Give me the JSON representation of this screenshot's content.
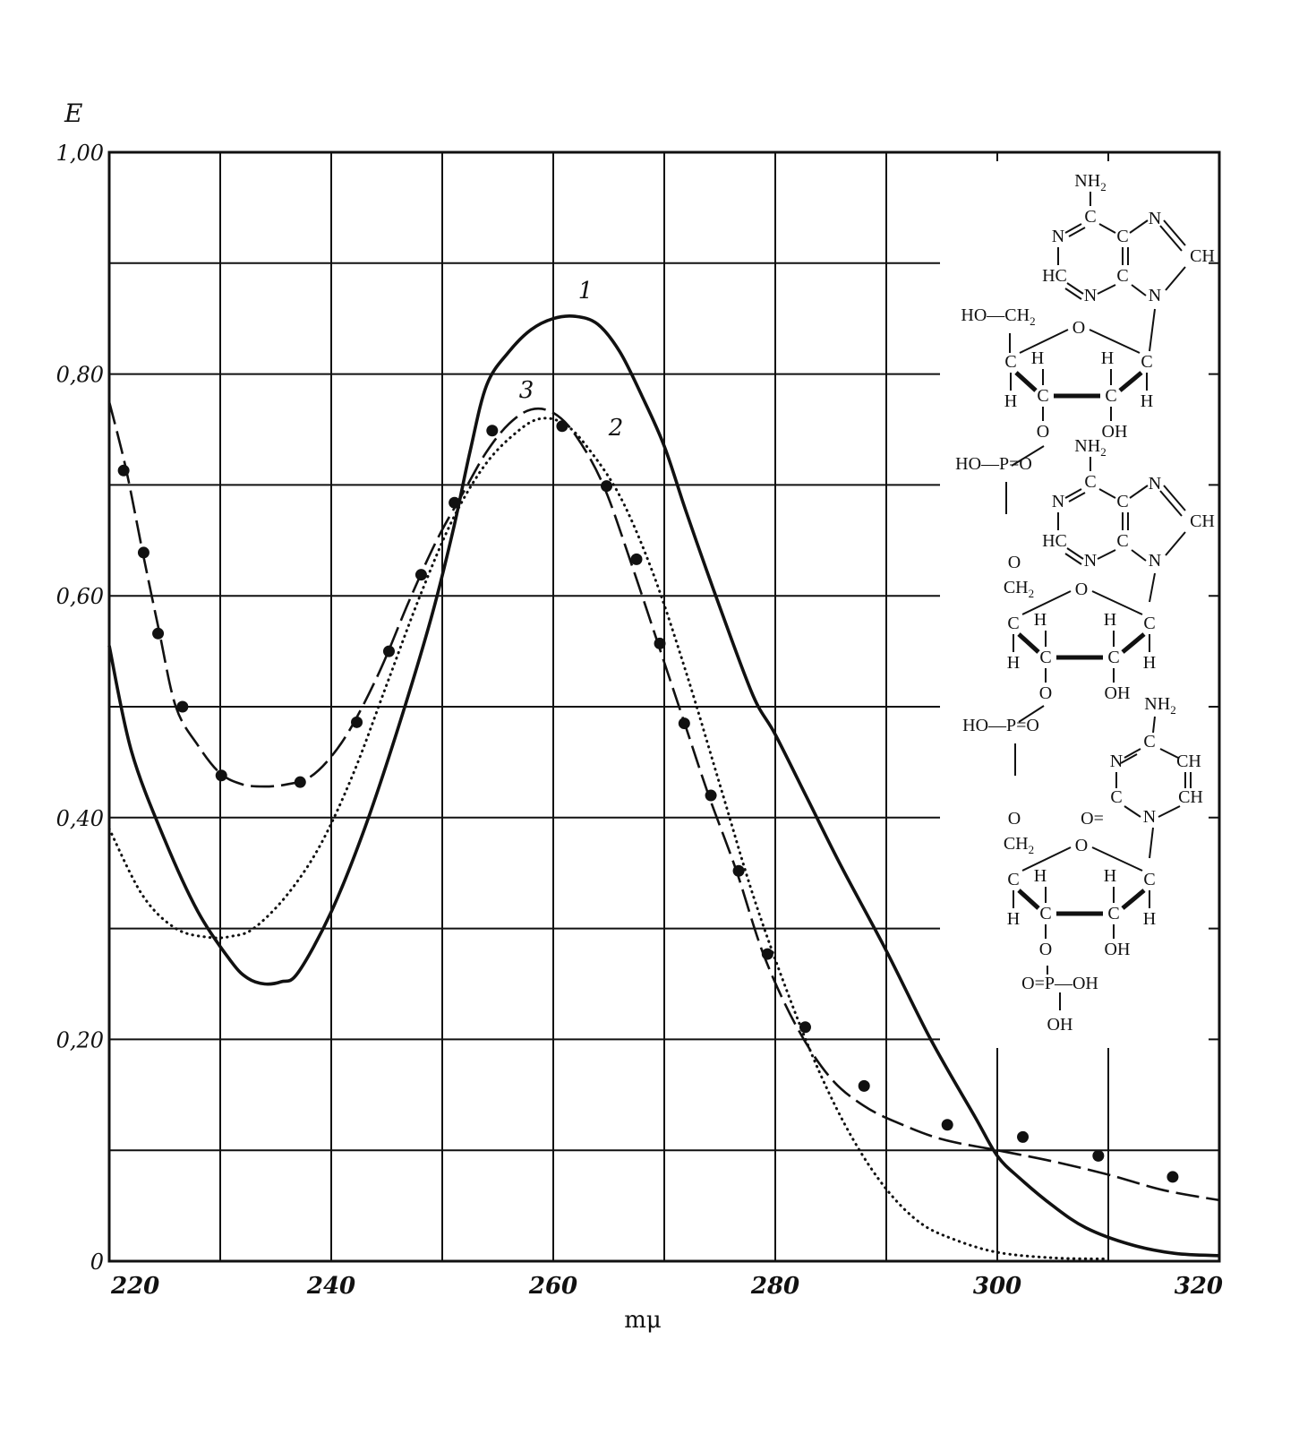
{
  "chart_data": {
    "type": "line",
    "title": "",
    "ylabel": "E",
    "xlabel": "mμ",
    "xlim": [
      220,
      320
    ],
    "ylim": [
      0,
      1.0
    ],
    "x_ticks": [
      220,
      240,
      260,
      280,
      300,
      320
    ],
    "x_tick_labels": [
      "220",
      "240",
      "260",
      "280",
      "300",
      "320"
    ],
    "y_ticks": [
      0,
      0.2,
      0.4,
      0.6,
      0.8,
      1.0
    ],
    "y_tick_labels": [
      "0",
      "0,20",
      "0,40",
      "0,60",
      "0,80",
      "1,00"
    ],
    "grid": true,
    "grid_x_step": 10,
    "grid_y_step": 0.1,
    "series": [
      {
        "name": "1",
        "style": "solid-thick",
        "x": [
          220,
          222,
          225,
          228,
          231,
          232.5,
          234,
          235.5,
          237,
          240,
          243,
          246,
          249,
          251,
          252.5,
          254,
          256,
          258,
          260,
          262,
          264,
          266,
          268,
          270,
          272,
          275,
          278,
          280,
          283,
          286,
          290,
          294,
          298,
          300,
          302,
          305,
          308,
          312,
          316,
          320
        ],
        "y": [
          0.555,
          0.46,
          0.38,
          0.315,
          0.27,
          0.255,
          0.25,
          0.252,
          0.26,
          0.315,
          0.39,
          0.48,
          0.58,
          0.66,
          0.73,
          0.79,
          0.82,
          0.84,
          0.85,
          0.852,
          0.845,
          0.82,
          0.78,
          0.735,
          0.675,
          0.59,
          0.51,
          0.475,
          0.415,
          0.355,
          0.28,
          0.2,
          0.13,
          0.095,
          0.075,
          0.05,
          0.03,
          0.015,
          0.007,
          0.005
        ]
      },
      {
        "name": "2",
        "style": "dotted",
        "x": [
          220,
          223,
          226,
          229,
          231,
          233,
          236,
          239,
          242,
          245,
          248,
          251,
          254,
          257,
          259,
          261,
          263,
          266,
          269,
          272,
          275,
          278,
          281,
          284,
          287,
          290,
          293,
          296,
          300,
          305,
          310
        ],
        "y": [
          0.39,
          0.33,
          0.3,
          0.292,
          0.293,
          0.3,
          0.33,
          0.375,
          0.44,
          0.52,
          0.6,
          0.67,
          0.72,
          0.75,
          0.76,
          0.755,
          0.735,
          0.69,
          0.62,
          0.53,
          0.43,
          0.33,
          0.245,
          0.17,
          0.11,
          0.065,
          0.035,
          0.02,
          0.008,
          0.003,
          0.002
        ]
      },
      {
        "name": "3",
        "style": "dash-with-dots",
        "x": [
          220,
          221.5,
          223,
          224.5,
          226,
          228,
          230,
          232,
          234,
          236,
          238,
          240,
          242,
          244.5,
          247,
          249.5,
          252,
          254,
          256,
          258,
          260,
          262,
          264.5,
          267,
          269.5,
          272,
          274,
          276.5,
          279,
          282,
          285,
          288,
          291,
          295,
          300,
          305,
          310,
          315,
          320
        ],
        "y": [
          0.775,
          0.715,
          0.64,
          0.568,
          0.5,
          0.465,
          0.44,
          0.43,
          0.428,
          0.43,
          0.436,
          0.455,
          0.485,
          0.535,
          0.595,
          0.65,
          0.695,
          0.73,
          0.755,
          0.768,
          0.765,
          0.745,
          0.7,
          0.63,
          0.555,
          0.48,
          0.42,
          0.352,
          0.275,
          0.21,
          0.165,
          0.14,
          0.125,
          0.11,
          0.1,
          0.09,
          0.078,
          0.064,
          0.055
        ]
      }
    ],
    "marker_points_series_3": {
      "x": [
        221.3,
        223.1,
        224.4,
        226.6,
        230.1,
        237.2,
        242.3,
        245.2,
        248.1,
        251.1,
        254.5,
        260.8,
        264.8,
        267.5,
        269.6,
        271.8,
        274.2,
        276.7,
        279.3,
        282.7,
        288.0,
        295.5,
        302.3,
        309.1,
        315.8
      ],
      "y": [
        0.713,
        0.639,
        0.566,
        0.5,
        0.438,
        0.432,
        0.486,
        0.55,
        0.619,
        0.684,
        0.749,
        0.753,
        0.699,
        0.633,
        0.557,
        0.485,
        0.42,
        0.352,
        0.277,
        0.211,
        0.158,
        0.123,
        0.112,
        0.095,
        0.076
      ]
    }
  },
  "molecule": {
    "labels": [
      "NH2",
      "C",
      "N",
      "N",
      "C",
      "CH",
      "HC",
      "C",
      "N",
      "N",
      "HO—CH2",
      "O",
      "C",
      "C",
      "H",
      "H",
      "C",
      "C",
      "H",
      "H",
      "OH",
      "O",
      "HO—P=O",
      "NH2",
      "C",
      "N",
      "N",
      "C",
      "CH",
      "HC",
      "C",
      "N",
      "N",
      "O",
      "CH2",
      "O",
      "C",
      "C",
      "H",
      "H",
      "C",
      "C",
      "H",
      "H",
      "OH",
      "O",
      "HO—P=O",
      "NH2",
      "C",
      "N",
      "CH",
      "C",
      "CH",
      "O=",
      "N",
      "O",
      "CH2",
      "O",
      "C",
      "C",
      "H",
      "H",
      "C",
      "C",
      "H",
      "H",
      "OH",
      "O",
      "O=P—OH",
      "OH"
    ]
  }
}
